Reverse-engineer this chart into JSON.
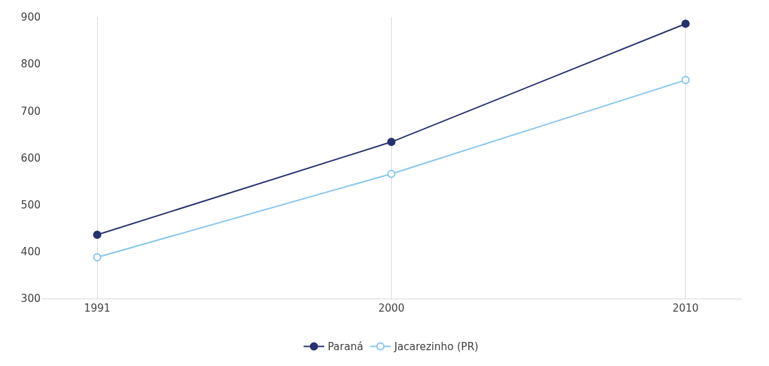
{
  "chart_data": {
    "type": "line",
    "categories": [
      "1991",
      "2000",
      "2010"
    ],
    "series": [
      {
        "name": "Paraná",
        "color": "#24326e",
        "values": [
          436,
          634,
          886
        ]
      },
      {
        "name": "Jacarezinho (PR)",
        "color": "#86c5ec",
        "values": [
          388,
          566,
          766
        ]
      }
    ],
    "ylim": [
      300,
      900
    ],
    "yticks": [
      300,
      400,
      500,
      600,
      700,
      800,
      900
    ],
    "grid": "x",
    "legend": "bottom",
    "marker": "circle",
    "line_style": "solid"
  }
}
